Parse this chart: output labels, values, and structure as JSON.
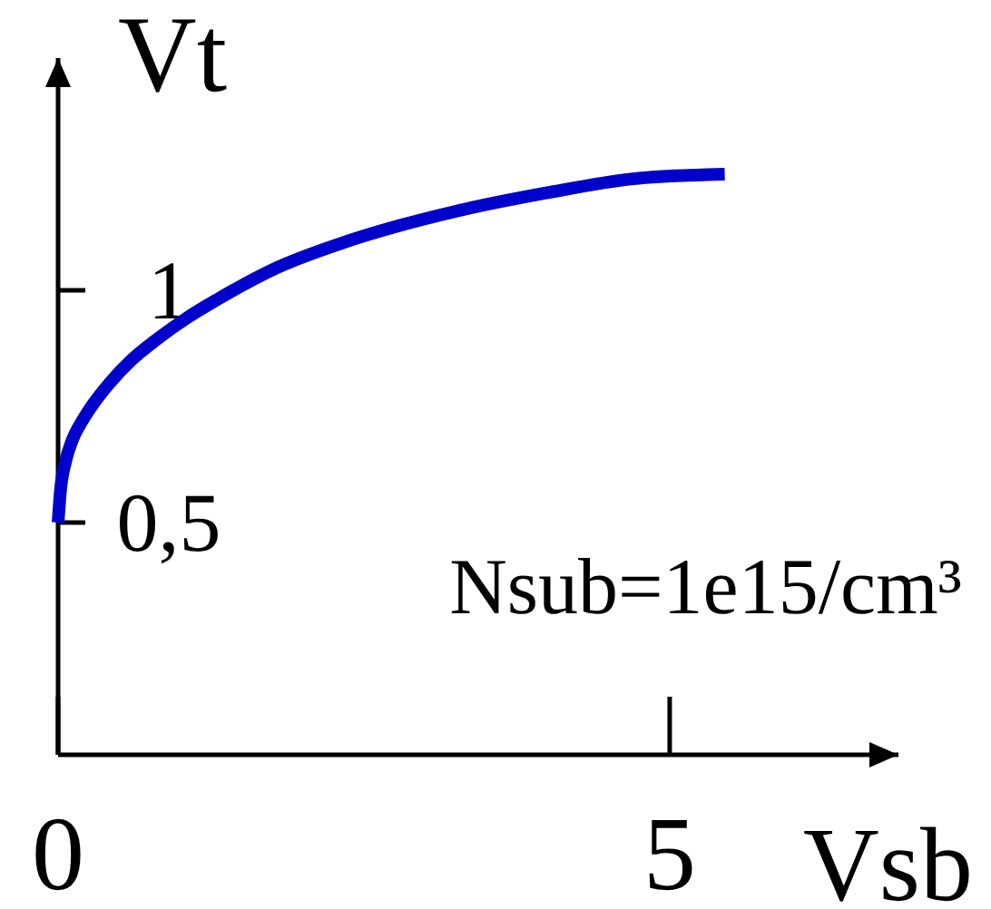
{
  "chart_data": {
    "type": "line",
    "xlabel": "Vsb",
    "ylabel": "Vt",
    "annotations": [
      "Nsub=1e15/cm³"
    ],
    "x": [
      0,
      0.02,
      0.06,
      0.12,
      0.2,
      0.3,
      0.42,
      0.6,
      0.81,
      1.05,
      1.3,
      1.8,
      2.3,
      2.8,
      3.25,
      4.0,
      4.7,
      5.45
    ],
    "series": [
      {
        "color": "#0000cc",
        "values": [
          0.5,
          0.57,
          0.63,
          0.68,
          0.72,
          0.76,
          0.8,
          0.85,
          0.895,
          0.94,
          0.98,
          1.05,
          1.1,
          1.14,
          1.17,
          1.21,
          1.24,
          1.25
        ]
      }
    ],
    "xlim": [
      0,
      6.87
    ],
    "ylim": [
      0,
      1.5
    ],
    "xticks": [
      0,
      5
    ],
    "yticks": [
      {
        "value": 0.5,
        "label": "0,5"
      },
      1
    ]
  }
}
